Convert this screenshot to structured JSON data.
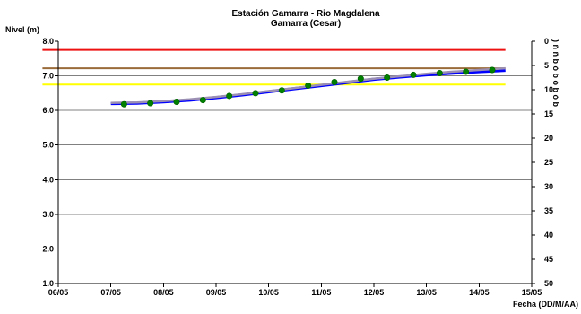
{
  "chart_data": {
    "type": "line",
    "title": "Estación Gamarra - Rio Magdalena",
    "subtitle": "Gamarra (Cesar)",
    "ylabel": "Nivel (m)",
    "xlabel": "Fecha (DD/M/AA)",
    "ylim": [
      1.0,
      8.0
    ],
    "y_ticks": [
      "8.0",
      "7.0",
      "6.0",
      "5.0",
      "4.0",
      "3.0",
      "2.0",
      "1.0"
    ],
    "y2lim": [
      0,
      50
    ],
    "y2_reversed": true,
    "y2_ticks": [
      "0",
      "5",
      "10",
      "15",
      "20",
      "25",
      "30",
      "35",
      "40",
      "45",
      "50"
    ],
    "y2_label_fragment": ") ñ ñ b ó b ó b ó b",
    "x_ticks": [
      "06/05",
      "07/05",
      "08/05",
      "09/05",
      "10/05",
      "11/05",
      "12/05",
      "13/05",
      "14/05",
      "15/05"
    ],
    "xlim": [
      0,
      9
    ],
    "grid": "horizontal",
    "reference_lines": [
      {
        "value": 7.75,
        "x_range": [
          -0.3,
          8.5
        ],
        "color": "#ee1111"
      },
      {
        "value": 7.22,
        "x_range": [
          -0.3,
          8.5
        ],
        "color": "#9a6b3a"
      },
      {
        "value": 6.75,
        "x_range": [
          -0.3,
          8.5
        ],
        "color": "#ffff00"
      }
    ],
    "series": [
      {
        "color": "#0000ff",
        "x": [
          1.0,
          1.5,
          2.0,
          2.5,
          3.0,
          3.5,
          4.0,
          4.5,
          5.0,
          5.5,
          6.0,
          6.5,
          7.0,
          7.5,
          8.0,
          8.5
        ],
        "values": [
          6.2,
          6.21,
          6.25,
          6.3,
          6.37,
          6.45,
          6.54,
          6.63,
          6.72,
          6.81,
          6.9,
          6.97,
          7.03,
          7.08,
          7.12,
          7.16
        ]
      },
      {
        "color": "#9b8fb3",
        "x": [
          1.0,
          1.5,
          2.0,
          2.5,
          3.0,
          3.5,
          4.0,
          4.5,
          5.0,
          5.5,
          6.0,
          6.5,
          7.0,
          7.5,
          8.0,
          8.5
        ],
        "values": [
          6.22,
          6.23,
          6.27,
          6.32,
          6.39,
          6.47,
          6.56,
          6.65,
          6.74,
          6.83,
          6.92,
          6.99,
          7.06,
          7.12,
          7.17,
          7.22
        ]
      },
      {
        "color": "#008000",
        "marker": "circle",
        "x": [
          1.25,
          1.75,
          2.25,
          2.75,
          3.25,
          3.75,
          4.25,
          4.75,
          5.25,
          5.75,
          6.25,
          6.75,
          7.25,
          7.75,
          8.25
        ],
        "values": [
          6.18,
          6.21,
          6.25,
          6.3,
          6.42,
          6.5,
          6.58,
          6.72,
          6.82,
          6.92,
          6.95,
          7.03,
          7.08,
          7.12,
          7.17
        ]
      }
    ]
  }
}
